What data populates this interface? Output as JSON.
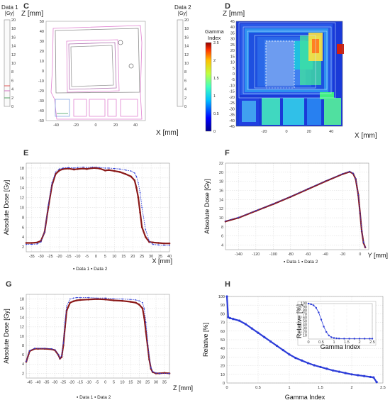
{
  "panels": {
    "C": {
      "letter": "C",
      "xlabel": "X [mm]",
      "ylabel": "Z [mm]",
      "left_bar_title": "Data 1",
      "left_bar_unit": "[Gy]",
      "right_bar_title": "Data 2",
      "right_bar_unit": "[Gy]",
      "bar_ticks": [
        20,
        18,
        16,
        14,
        12,
        10,
        8,
        6,
        4,
        2,
        0
      ],
      "xticks": [
        -40,
        -20,
        0,
        20,
        40
      ],
      "yticks": [
        50,
        40,
        30,
        20,
        10,
        0,
        -10,
        -20,
        -30,
        -40,
        -50
      ]
    },
    "D": {
      "letter": "D",
      "xlabel": "X [mm]",
      "ylabel": "Z [mm]",
      "cbar_title_1": "Gamma",
      "cbar_title_2": "Index",
      "cbar_ticks": [
        2.5,
        2,
        1.5,
        1,
        0.5,
        0
      ],
      "xticks": [
        -20,
        0,
        20,
        40
      ],
      "yticks": [
        45,
        40,
        35,
        30,
        25,
        20,
        15,
        10,
        5,
        0,
        -5,
        -10,
        -15,
        -20,
        -25,
        -30,
        -35,
        -40,
        -45
      ]
    },
    "E": {
      "letter": "E",
      "legend": "▪ Data 1 ▪ Data 2"
    },
    "F": {
      "letter": "F",
      "legend": "▪ Data 1 ▪ Data 2"
    },
    "G": {
      "letter": "G",
      "legend": "▪ Data 1 ▪ Data 2"
    },
    "H": {
      "letter": "H"
    }
  },
  "chart_data": [
    {
      "id": "E",
      "type": "line",
      "xlabel": "X [mm]",
      "ylabel": "Absolute Dose [Gy]",
      "xlim": [
        -38,
        40
      ],
      "ylim": [
        1,
        19
      ],
      "xticks": [
        -35,
        -30,
        -25,
        -20,
        -15,
        -10,
        -5,
        0,
        5,
        10,
        15,
        20,
        25,
        30,
        35,
        40
      ],
      "yticks": [
        2,
        4,
        6,
        8,
        10,
        12,
        14,
        16,
        18
      ],
      "series": [
        {
          "name": "Data 1",
          "color": "#8b1a1a",
          "x": [
            -38,
            -35,
            -32,
            -30,
            -28,
            -26,
            -24,
            -22,
            -20,
            -18,
            -15,
            -12,
            -10,
            -7,
            -5,
            -2,
            0,
            2,
            5,
            7,
            10,
            13,
            16,
            19,
            21,
            22,
            23,
            24,
            25,
            27,
            29,
            31,
            34,
            37,
            40
          ],
          "y": [
            2.8,
            2.8,
            2.9,
            3.2,
            5,
            10,
            14.5,
            16.8,
            17.5,
            17.8,
            17.9,
            17.7,
            17.8,
            17.9,
            17.8,
            18,
            18,
            17.9,
            17.5,
            17.6,
            17.4,
            17.2,
            16.8,
            16.3,
            15.5,
            14,
            12,
            9,
            6,
            4,
            3,
            2.9,
            2.8,
            2.7,
            2.7
          ]
        },
        {
          "name": "Data 2",
          "color": "#2c3cd8",
          "x": [
            -38,
            -35,
            -32,
            -30,
            -28,
            -26,
            -24,
            -22,
            -20,
            -18,
            -15,
            -12,
            -10,
            -7,
            -5,
            -2,
            0,
            2,
            5,
            7,
            10,
            13,
            16,
            19,
            21,
            22,
            23,
            24,
            25,
            27,
            29,
            31,
            34,
            37,
            40
          ],
          "y": [
            2.5,
            2.5,
            2.6,
            3,
            5,
            10.5,
            15,
            17.2,
            17.8,
            18,
            18.1,
            18,
            18.1,
            18.2,
            18.1,
            18.2,
            18.2,
            18.1,
            18,
            18,
            17.9,
            17.8,
            17.6,
            17.4,
            17,
            16.3,
            15,
            13,
            10,
            5.5,
            3.2,
            2.5,
            2.4,
            2.3,
            2.3
          ]
        }
      ]
    },
    {
      "id": "F",
      "type": "line",
      "xlabel": "Y [mm]",
      "ylabel": "Absolute Dose [Gy]",
      "xlim": [
        -155,
        10
      ],
      "ylim": [
        3,
        22
      ],
      "xticks": [
        -140,
        -120,
        -100,
        -80,
        -60,
        -40,
        -20,
        0
      ],
      "yticks": [
        4,
        6,
        8,
        10,
        12,
        14,
        16,
        18,
        20,
        22
      ],
      "series": [
        {
          "name": "Data 1",
          "color": "#8b1a1a",
          "x": [
            -155,
            -140,
            -120,
            -100,
            -80,
            -60,
            -40,
            -20,
            -12,
            -8,
            -5,
            -2,
            0,
            2,
            4,
            6
          ],
          "y": [
            9.2,
            10,
            11.5,
            13,
            14.6,
            16.3,
            18,
            19.6,
            20.1,
            19.7,
            18.5,
            15,
            11,
            7,
            4.5,
            3.5
          ]
        },
        {
          "name": "Data 2",
          "color": "#2c3cd8",
          "x": [
            -155,
            -140,
            -120,
            -100,
            -80,
            -60,
            -40,
            -20,
            -12,
            -8,
            -5,
            -2,
            0,
            2,
            4,
            6
          ],
          "y": [
            9.3,
            10.1,
            11.6,
            13.1,
            14.7,
            16.4,
            18.1,
            19.7,
            20.2,
            19.8,
            18.6,
            15.1,
            11.1,
            7.1,
            4.6,
            3.6
          ]
        }
      ]
    },
    {
      "id": "G",
      "type": "line",
      "xlabel": "Z [mm]",
      "ylabel": "Absolute Dose [Gy]",
      "xlim": [
        -47,
        38
      ],
      "ylim": [
        1,
        19
      ],
      "xticks": [
        -45,
        -40,
        -35,
        -30,
        -25,
        -20,
        -15,
        -10,
        -5,
        0,
        5,
        10,
        15,
        20,
        25,
        30,
        35
      ],
      "yticks": [
        2,
        4,
        6,
        8,
        10,
        12,
        14,
        16,
        18
      ],
      "series": [
        {
          "name": "Data 1",
          "color": "#8b1a1a",
          "x": [
            -47,
            -45,
            -42,
            -40,
            -36,
            -32,
            -30,
            -28,
            -27,
            -26,
            -25,
            -24,
            -23,
            -21,
            -19,
            -17,
            -15,
            -10,
            -5,
            0,
            5,
            10,
            15,
            18,
            20,
            22,
            23,
            24,
            25,
            26,
            27,
            28,
            30,
            32,
            35,
            38
          ],
          "y": [
            4.5,
            6.8,
            7.3,
            7.3,
            7.3,
            7.2,
            7,
            6,
            5.2,
            5.5,
            8,
            12,
            15.5,
            17.2,
            17.5,
            17.7,
            17.8,
            17.9,
            18,
            17.9,
            17.7,
            17.6,
            17.4,
            17.2,
            16.8,
            16,
            14,
            11,
            8,
            5,
            3,
            2.3,
            2,
            2,
            2.1,
            2
          ]
        },
        {
          "name": "Data 2",
          "color": "#2c3cd8",
          "x": [
            -47,
            -45,
            -42,
            -40,
            -36,
            -32,
            -30,
            -28,
            -27,
            -26,
            -25,
            -24,
            -23,
            -21,
            -19,
            -17,
            -15,
            -10,
            -5,
            0,
            5,
            10,
            15,
            18,
            20,
            22,
            23,
            24,
            25,
            26,
            27,
            28,
            30,
            32,
            35,
            38
          ],
          "y": [
            4.6,
            6.9,
            7.4,
            7.4,
            7.4,
            7.3,
            7.1,
            6.1,
            5.3,
            5.8,
            8.5,
            13,
            16.5,
            18,
            18.2,
            18.3,
            18.3,
            18.3,
            18.2,
            18.2,
            18.1,
            18,
            17.9,
            17.8,
            17.6,
            17.2,
            16,
            13,
            9,
            5.5,
            3.2,
            2.4,
            2.1,
            2,
            2,
            2
          ]
        }
      ]
    },
    {
      "id": "H",
      "type": "line",
      "xlabel": "Gamma Index",
      "ylabel": "Relative [%]",
      "xlim": [
        0,
        2.5
      ],
      "ylim": [
        0,
        100
      ],
      "xticks": [
        0,
        0.5,
        1,
        1.5,
        2,
        2.5
      ],
      "yticks": [
        0,
        10,
        20,
        30,
        40,
        50,
        60,
        70,
        80,
        90,
        100
      ],
      "series": [
        {
          "name": "Main",
          "color": "#2c3cd8",
          "x": [
            0,
            0.02,
            0.05,
            0.1,
            0.2,
            0.3,
            0.4,
            0.5,
            0.6,
            0.7,
            0.8,
            0.9,
            1.0,
            1.1,
            1.2,
            1.3,
            1.4,
            1.5,
            1.6,
            1.7,
            1.8,
            1.9,
            2.0,
            2.1,
            2.2,
            2.3,
            2.35,
            2.4
          ],
          "y": [
            100,
            76,
            75,
            74,
            72,
            68,
            63,
            58,
            53,
            48,
            43,
            38,
            33,
            29,
            26,
            23,
            20.5,
            18.5,
            16.5,
            14.5,
            13,
            11.5,
            10,
            9,
            8,
            7,
            6.5,
            1
          ]
        }
      ],
      "inset": {
        "xlabel": "Gamma Index",
        "ylabel": "Relative [%]",
        "xlim": [
          0,
          2.5
        ],
        "ylim": [
          0,
          100
        ],
        "xticks": [
          0,
          0.5,
          1,
          1.5,
          2,
          2.5
        ],
        "yticks": [
          10,
          20,
          30,
          40,
          50,
          60,
          70,
          80,
          90,
          100
        ],
        "series": [
          {
            "name": "Inset",
            "color": "#2c3cd8",
            "x": [
              0,
              0.1,
              0.2,
              0.3,
              0.4,
              0.5,
              0.6,
              0.7,
              0.8,
              0.9,
              1.0,
              1.1,
              1.2,
              1.4,
              1.6,
              1.8,
              2.0,
              2.2,
              2.4,
              2.5
            ],
            "y": [
              100,
              98,
              95,
              88,
              75,
              55,
              35,
              20,
              10,
              5,
              3,
              2,
              1.5,
              1,
              1,
              1,
              1,
              1,
              1,
              1
            ]
          }
        ]
      }
    }
  ]
}
